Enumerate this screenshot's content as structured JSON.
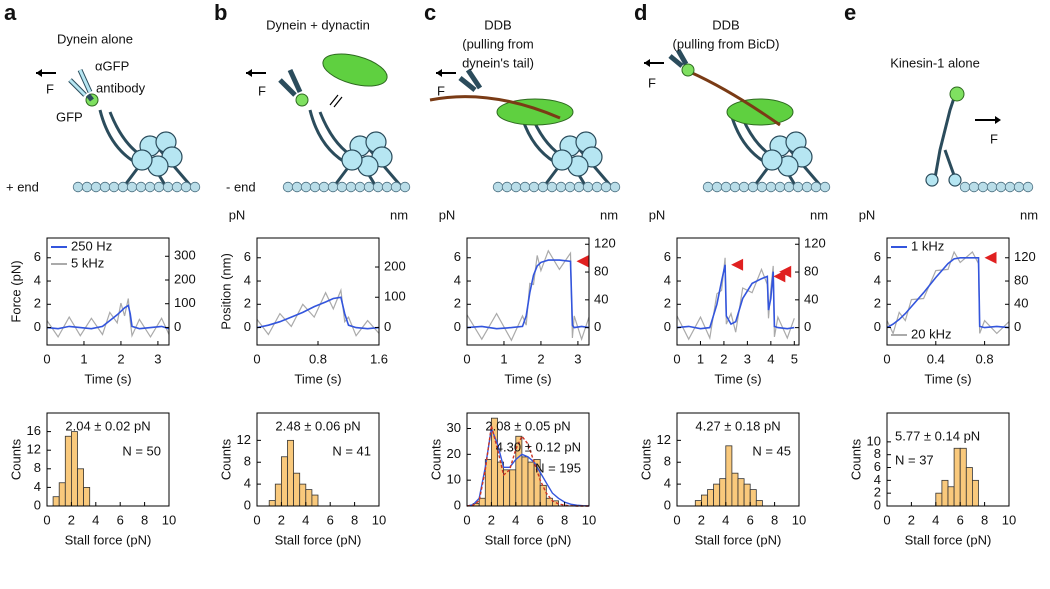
{
  "diagrams": [
    {
      "letter": "a",
      "title": [
        "Dynein alone"
      ],
      "labels": [
        "F",
        "αGFP",
        "antibody",
        "GFP",
        "+ end"
      ]
    },
    {
      "letter": "b",
      "title": [
        "Dynein + dynactin"
      ],
      "labels": [
        "F",
        "- end"
      ]
    },
    {
      "letter": "c",
      "title": [
        "DDB",
        "(pulling from",
        "dynein's tail)"
      ],
      "labels": [
        "F"
      ]
    },
    {
      "letter": "d",
      "title": [
        "DDB",
        "(pulling from BicD)"
      ],
      "labels": [
        "F"
      ]
    },
    {
      "letter": "e",
      "title": [
        "Kinesin-1 alone"
      ],
      "labels": [
        "F"
      ]
    }
  ],
  "chart_data": [
    {
      "type": "line",
      "x_label": "Time (s)",
      "y_label": "Force (pN)",
      "legend": "upper left",
      "xlim": [
        0,
        3.3
      ],
      "xticks": [
        0,
        1,
        2,
        3
      ],
      "ylim": [
        -1.5,
        7.7
      ],
      "yticks": [
        0,
        2,
        4,
        6
      ],
      "y2lim": [
        -74,
        377
      ],
      "y2ticks": [
        0,
        100,
        200,
        300
      ],
      "series": [
        {
          "name": "5 kHz",
          "color": "#aaaaaa",
          "x": [
            0,
            0.3,
            0.6,
            0.9,
            1.2,
            1.5,
            1.7,
            1.9,
            2.0,
            2.1,
            2.2,
            2.25,
            2.3,
            2.5,
            2.8,
            3.1,
            3.3
          ],
          "values": [
            0.6,
            -0.8,
            0.9,
            -0.7,
            0.8,
            -0.6,
            1.3,
            0.4,
            2.1,
            1.0,
            2.5,
            0.6,
            -0.7,
            0.7,
            -0.8,
            0.8,
            -0.6
          ]
        },
        {
          "name": "250 Hz",
          "color": "#3355dd",
          "x": [
            0,
            0.3,
            0.6,
            0.9,
            1.2,
            1.5,
            1.7,
            1.9,
            2.0,
            2.1,
            2.2,
            2.25,
            2.3,
            2.5,
            2.8,
            3.1,
            3.3
          ],
          "values": [
            0,
            -0.1,
            0.1,
            0,
            -0.1,
            0.1,
            0.6,
            1.1,
            1.4,
            1.7,
            1.9,
            1.2,
            0.1,
            -0.1,
            0,
            0.1,
            -0.1
          ]
        }
      ]
    },
    {
      "type": "line",
      "x_label": "Time (s)",
      "y_label": "Position (nm)",
      "y_unit": "pN",
      "y2_unit": "nm",
      "xlim": [
        0,
        1.6
      ],
      "xticks": [
        0,
        0.8,
        1.6
      ],
      "ylim": [
        -1.5,
        7.7
      ],
      "yticks": [
        0,
        2,
        4,
        6
      ],
      "y2lim": [
        -58,
        296
      ],
      "y2ticks": [
        0,
        100,
        200
      ],
      "series": [
        {
          "color": "#aaaaaa",
          "x": [
            0,
            0.15,
            0.3,
            0.45,
            0.6,
            0.75,
            0.9,
            1.0,
            1.1,
            1.15,
            1.2,
            1.3,
            1.45,
            1.6
          ],
          "values": [
            0.7,
            -0.6,
            1.2,
            0.1,
            2.0,
            0.9,
            3.0,
            1.6,
            3.2,
            0.5,
            0.9,
            -0.7,
            0.6,
            -0.5
          ]
        },
        {
          "color": "#3355dd",
          "x": [
            0,
            0.15,
            0.3,
            0.45,
            0.6,
            0.75,
            0.9,
            1.0,
            1.1,
            1.15,
            1.2,
            1.3,
            1.45,
            1.6
          ],
          "values": [
            0,
            0.2,
            0.5,
            0.9,
            1.3,
            1.8,
            2.2,
            2.5,
            2.6,
            1.2,
            0.2,
            0,
            -0.1,
            0
          ]
        }
      ]
    },
    {
      "type": "line",
      "x_label": "Time (s)",
      "y_unit": "pN",
      "y2_unit": "nm",
      "xlim": [
        0,
        3.3
      ],
      "xticks": [
        0,
        1,
        2,
        3
      ],
      "ylim": [
        -1.5,
        7.7
      ],
      "yticks": [
        0,
        2,
        4,
        6
      ],
      "y2lim": [
        -25,
        129
      ],
      "y2ticks": [
        0,
        40,
        80,
        120
      ],
      "series": [
        {
          "color": "#aaaaaa",
          "x": [
            0,
            0.4,
            0.8,
            1.2,
            1.5,
            1.6,
            1.7,
            1.8,
            1.9,
            2.0,
            2.2,
            2.5,
            2.8,
            2.85,
            2.9,
            3.1,
            3.3
          ],
          "values": [
            1.1,
            -1.0,
            1.2,
            -1.1,
            1.0,
            0.2,
            3.8,
            3.7,
            6.2,
            4.9,
            6.6,
            5.0,
            6.4,
            -0.9,
            1.0,
            -1.0,
            0.9
          ]
        },
        {
          "color": "#3355dd",
          "x": [
            0,
            0.4,
            0.8,
            1.2,
            1.5,
            1.6,
            1.7,
            1.8,
            1.9,
            2.0,
            2.2,
            2.5,
            2.8,
            2.85,
            2.9,
            3.1,
            3.3
          ],
          "values": [
            0,
            0.1,
            -0.1,
            0,
            0.1,
            1.0,
            3.0,
            4.5,
            5.3,
            5.6,
            5.8,
            5.8,
            5.7,
            0.2,
            0,
            0.1,
            0
          ]
        }
      ]
    },
    {
      "type": "line",
      "x_label": "Time (s)",
      "y_unit": "pN",
      "y2_unit": "nm",
      "xlim": [
        0,
        5.2
      ],
      "xticks": [
        0,
        1,
        2,
        3,
        4,
        5
      ],
      "ylim": [
        -1.5,
        7.7
      ],
      "yticks": [
        0,
        2,
        4,
        6
      ],
      "y2lim": [
        -25,
        129
      ],
      "y2ticks": [
        0,
        40,
        80,
        120
      ],
      "series": [
        {
          "color": "#aaaaaa",
          "x": [
            0,
            0.5,
            1.0,
            1.4,
            1.7,
            1.9,
            2.05,
            2.1,
            2.3,
            2.5,
            2.8,
            3.2,
            3.6,
            3.85,
            3.9,
            4.0,
            4.1,
            4.15,
            4.3,
            4.7,
            5.0
          ],
          "values": [
            1.0,
            -1.0,
            0.9,
            -0.9,
            2.9,
            3.2,
            6.0,
            0.3,
            1.2,
            -0.4,
            3.4,
            3.0,
            5.0,
            3.7,
            0.8,
            3.3,
            5.3,
            -0.8,
            0.9,
            -0.9,
            0.8
          ]
        },
        {
          "color": "#3355dd",
          "x": [
            0,
            0.5,
            1.0,
            1.4,
            1.7,
            1.9,
            2.05,
            2.1,
            2.3,
            2.5,
            2.8,
            3.2,
            3.6,
            3.85,
            3.9,
            4.0,
            4.1,
            4.15,
            4.3,
            4.7,
            5.0
          ],
          "values": [
            0,
            0.1,
            -0.1,
            0,
            2.0,
            4.0,
            5.4,
            1.0,
            0.3,
            0.5,
            2.5,
            3.8,
            4.2,
            4.4,
            1.5,
            2.5,
            4.8,
            0.1,
            0,
            -0.1,
            0
          ]
        }
      ]
    },
    {
      "type": "line",
      "x_label": "Time (s)",
      "y_unit": "pN",
      "y2_unit": "nm",
      "legend": "left",
      "xlim": [
        0,
        1.0
      ],
      "xticks": [
        0,
        0.4,
        0.8
      ],
      "ylim": [
        -1.5,
        7.7
      ],
      "yticks": [
        0,
        2,
        4,
        6
      ],
      "y2lim": [
        -30,
        154
      ],
      "y2ticks": [
        0,
        40,
        80,
        120
      ],
      "series": [
        {
          "name": "20 kHz",
          "color": "#aaaaaa",
          "x": [
            0,
            0.05,
            0.1,
            0.15,
            0.2,
            0.3,
            0.4,
            0.5,
            0.55,
            0.6,
            0.7,
            0.75,
            0.76,
            0.8,
            0.9,
            1.0
          ],
          "values": [
            0.6,
            -0.5,
            1.3,
            0.6,
            2.4,
            2.5,
            4.9,
            5.0,
            6.5,
            5.6,
            6.5,
            5.5,
            -0.5,
            0.6,
            -0.5,
            0.5
          ]
        },
        {
          "name": "1 kHz",
          "color": "#3355dd",
          "x": [
            0,
            0.05,
            0.1,
            0.15,
            0.2,
            0.3,
            0.4,
            0.5,
            0.55,
            0.6,
            0.7,
            0.75,
            0.76,
            0.8,
            0.9,
            1.0
          ],
          "values": [
            0,
            0.3,
            0.7,
            1.2,
            1.8,
            3.0,
            4.3,
            5.5,
            5.9,
            6.0,
            6.0,
            6.0,
            0.1,
            0,
            0.1,
            0
          ]
        }
      ]
    },
    {
      "type": "histogram",
      "x_label": "Stall force (pN)",
      "y_label": "Counts",
      "color": "#f9c97c",
      "bins": [
        0,
        0.5,
        1,
        1.5,
        2,
        2.5,
        3,
        3.5,
        4,
        4.5,
        5,
        5.5,
        6,
        6.5,
        7,
        7.5,
        8,
        8.5,
        9,
        9.5,
        10
      ],
      "values": [
        0,
        2,
        5,
        15,
        16,
        8,
        4,
        0,
        0,
        0,
        0,
        0,
        0,
        0,
        0,
        0,
        0,
        0,
        0,
        0
      ],
      "xlim": [
        0,
        10
      ],
      "xticks": [
        0,
        2,
        4,
        6,
        8,
        10
      ],
      "ylim": [
        0,
        20
      ],
      "yticks": [
        0,
        4,
        8,
        12,
        16
      ],
      "annotations": [
        "2.04 ± 0.02  pN",
        "N = 50"
      ]
    },
    {
      "type": "histogram",
      "x_label": "Stall force (pN)",
      "y_label": "Counts",
      "color": "#f9c97c",
      "bins": [
        0,
        0.5,
        1,
        1.5,
        2,
        2.5,
        3,
        3.5,
        4,
        4.5,
        5,
        5.5,
        6,
        6.5,
        7,
        7.5,
        8,
        8.5,
        9,
        9.5,
        10
      ],
      "values": [
        0,
        0,
        1,
        4,
        9,
        12,
        6,
        4,
        3,
        2,
        0,
        0,
        0,
        0,
        0,
        0,
        0,
        0,
        0,
        0
      ],
      "xlim": [
        0,
        10
      ],
      "xticks": [
        0,
        2,
        4,
        6,
        8,
        10
      ],
      "ylim": [
        0,
        17
      ],
      "yticks": [
        0,
        4,
        8,
        12
      ],
      "annotations": [
        "2.48 ± 0.06 pN",
        "N = 41"
      ]
    },
    {
      "type": "histogram",
      "x_label": "Stall force (pN)",
      "y_label": "Counts",
      "color": "#f9c97c",
      "bins": [
        0,
        0.5,
        1,
        1.5,
        2,
        2.5,
        3,
        3.5,
        4,
        4.5,
        5,
        5.5,
        6,
        6.5,
        7,
        7.5,
        8,
        8.5,
        9,
        9.5,
        10
      ],
      "values": [
        0,
        1,
        3,
        18,
        34,
        17,
        14,
        14,
        27,
        19,
        17,
        18,
        8,
        3,
        2,
        0,
        0,
        0,
        0,
        0
      ],
      "xlim": [
        0,
        10
      ],
      "xticks": [
        0,
        2,
        4,
        6,
        8,
        10
      ],
      "ylim": [
        0,
        36
      ],
      "yticks": [
        0,
        10,
        20,
        30
      ],
      "annotations": [
        "2.08 ± 0.05 pN",
        "4.30 ± 0.12 pN",
        "N = 195"
      ],
      "fits": [
        {
          "color": "#3355dd",
          "dash": false,
          "x": [
            0,
            0.5,
            1,
            1.5,
            2,
            2.5,
            3,
            3.5,
            4,
            4.5,
            5,
            5.5,
            6,
            6.5,
            7,
            7.5,
            8,
            8.5,
            9,
            9.5,
            10
          ],
          "values": [
            0,
            0.5,
            3,
            15,
            30,
            24,
            15,
            15,
            18,
            20,
            19,
            17,
            13,
            9,
            5,
            3,
            1.5,
            0.7,
            0.3,
            0.1,
            0
          ]
        },
        {
          "color": "#cc3322",
          "dash": true,
          "x": [
            0,
            0.5,
            1,
            1.5,
            2,
            2.5,
            3,
            3.5,
            4,
            4.5,
            5,
            5.5,
            6,
            6.5,
            7,
            7.5,
            8,
            8.5,
            9,
            9.5,
            10
          ],
          "values": [
            0,
            0.3,
            2,
            14,
            31,
            22,
            12,
            14,
            22,
            27,
            24,
            17,
            10,
            5,
            2,
            0.8,
            0.3,
            0.1,
            0,
            0,
            0
          ]
        }
      ]
    },
    {
      "type": "histogram",
      "x_label": "Stall force (pN)",
      "y_label": "Counts",
      "color": "#f9c97c",
      "bins": [
        0,
        0.5,
        1,
        1.5,
        2,
        2.5,
        3,
        3.5,
        4,
        4.5,
        5,
        5.5,
        6,
        6.5,
        7,
        7.5,
        8,
        8.5,
        9,
        9.5,
        10
      ],
      "values": [
        0,
        0,
        0,
        1,
        2,
        3,
        4,
        5,
        11,
        6,
        5,
        4,
        3,
        1,
        0,
        0,
        0,
        0,
        0,
        0
      ],
      "xlim": [
        0,
        10
      ],
      "xticks": [
        0,
        2,
        4,
        6,
        8,
        10
      ],
      "ylim": [
        0,
        17
      ],
      "yticks": [
        0,
        4,
        8,
        12
      ],
      "annotations": [
        "4.27 ± 0.18 pN",
        "N = 45"
      ]
    },
    {
      "type": "histogram",
      "x_label": "Stall force (pN)",
      "y_label": "Counts",
      "color": "#f9c97c",
      "bins": [
        0,
        0.5,
        1,
        1.5,
        2,
        2.5,
        3,
        3.5,
        4,
        4.5,
        5,
        5.5,
        6,
        6.5,
        7,
        7.5,
        8,
        8.5,
        9,
        9.5,
        10
      ],
      "values": [
        0,
        0,
        0,
        0,
        0,
        0,
        0,
        0,
        2,
        4,
        3,
        9,
        9,
        6,
        4,
        0,
        0,
        0,
        0,
        0
      ],
      "xlim": [
        0,
        10
      ],
      "xticks": [
        0,
        2,
        4,
        6,
        8,
        10
      ],
      "ylim": [
        0,
        14.5
      ],
      "yticks": [
        0,
        2,
        4,
        6,
        8,
        10
      ],
      "annotations": [
        "5.77 ± 0.14 pN",
        "N = 37"
      ]
    }
  ]
}
